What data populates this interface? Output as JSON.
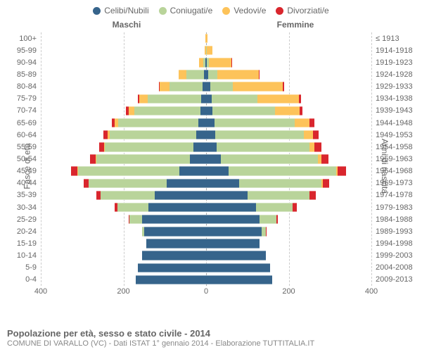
{
  "legend": [
    {
      "label": "Celibi/Nubili",
      "color": "#36648b"
    },
    {
      "label": "Coniugati/e",
      "color": "#b9d49a"
    },
    {
      "label": "Vedovi/e",
      "color": "#fdc35a"
    },
    {
      "label": "Divorziati/e",
      "color": "#d9262d"
    }
  ],
  "colors": {
    "single": "#36648b",
    "married": "#b9d49a",
    "widowed": "#fdc35a",
    "divorced": "#d9262d",
    "grid": "#cccccc",
    "text": "#666666"
  },
  "header_male": "Maschi",
  "header_female": "Femmine",
  "axis_left_title": "Fasce di età",
  "axis_right_title": "Anni di nascita",
  "title": "Popolazione per età, sesso e stato civile - 2014",
  "subtitle": "COMUNE DI VARALLO (VC) - Dati ISTAT 1° gennaio 2014 - Elaborazione TUTTITALIA.IT",
  "x_max": 400,
  "x_ticks": [
    400,
    200,
    0,
    200,
    400
  ],
  "rows": [
    {
      "age": "100+",
      "birth": "≤ 1913",
      "m": [
        0,
        0,
        1,
        0
      ],
      "f": [
        0,
        0,
        4,
        0
      ]
    },
    {
      "age": "95-99",
      "birth": "1914-1918",
      "m": [
        0,
        0,
        3,
        0
      ],
      "f": [
        0,
        1,
        14,
        0
      ]
    },
    {
      "age": "90-94",
      "birth": "1919-1923",
      "m": [
        2,
        5,
        10,
        0
      ],
      "f": [
        1,
        5,
        55,
        1
      ]
    },
    {
      "age": "85-89",
      "birth": "1924-1928",
      "m": [
        5,
        42,
        20,
        0
      ],
      "f": [
        5,
        22,
        100,
        2
      ]
    },
    {
      "age": "80-84",
      "birth": "1929-1933",
      "m": [
        8,
        80,
        24,
        2
      ],
      "f": [
        10,
        55,
        120,
        4
      ]
    },
    {
      "age": "75-79",
      "birth": "1934-1938",
      "m": [
        12,
        130,
        20,
        4
      ],
      "f": [
        14,
        110,
        100,
        6
      ]
    },
    {
      "age": "70-74",
      "birth": "1939-1943",
      "m": [
        14,
        160,
        14,
        6
      ],
      "f": [
        16,
        150,
        60,
        8
      ]
    },
    {
      "age": "65-69",
      "birth": "1944-1948",
      "m": [
        18,
        195,
        8,
        8
      ],
      "f": [
        20,
        195,
        35,
        12
      ]
    },
    {
      "age": "60-64",
      "birth": "1949-1953",
      "m": [
        24,
        210,
        4,
        10
      ],
      "f": [
        22,
        215,
        22,
        14
      ]
    },
    {
      "age": "55-59",
      "birth": "1954-1958",
      "m": [
        30,
        215,
        2,
        12
      ],
      "f": [
        26,
        225,
        12,
        16
      ]
    },
    {
      "age": "50-54",
      "birth": "1959-1963",
      "m": [
        40,
        225,
        2,
        14
      ],
      "f": [
        36,
        235,
        8,
        18
      ]
    },
    {
      "age": "45-49",
      "birth": "1964-1968",
      "m": [
        65,
        245,
        1,
        16
      ],
      "f": [
        55,
        260,
        4,
        20
      ]
    },
    {
      "age": "40-44",
      "birth": "1969-1973",
      "m": [
        95,
        190,
        0,
        12
      ],
      "f": [
        80,
        200,
        2,
        16
      ]
    },
    {
      "age": "35-39",
      "birth": "1974-1978",
      "m": [
        125,
        130,
        0,
        10
      ],
      "f": [
        100,
        150,
        1,
        14
      ]
    },
    {
      "age": "30-34",
      "birth": "1979-1983",
      "m": [
        140,
        75,
        0,
        6
      ],
      "f": [
        120,
        90,
        0,
        10
      ]
    },
    {
      "age": "25-29",
      "birth": "1984-1988",
      "m": [
        155,
        30,
        0,
        2
      ],
      "f": [
        130,
        40,
        0,
        4
      ]
    },
    {
      "age": "20-24",
      "birth": "1989-1993",
      "m": [
        150,
        5,
        0,
        0
      ],
      "f": [
        135,
        10,
        0,
        1
      ]
    },
    {
      "age": "15-19",
      "birth": "1994-1998",
      "m": [
        145,
        0,
        0,
        0
      ],
      "f": [
        130,
        0,
        0,
        0
      ]
    },
    {
      "age": "10-14",
      "birth": "1999-2003",
      "m": [
        155,
        0,
        0,
        0
      ],
      "f": [
        145,
        0,
        0,
        0
      ]
    },
    {
      "age": "5-9",
      "birth": "2004-2008",
      "m": [
        165,
        0,
        0,
        0
      ],
      "f": [
        155,
        0,
        0,
        0
      ]
    },
    {
      "age": "0-4",
      "birth": "2009-2013",
      "m": [
        170,
        0,
        0,
        0
      ],
      "f": [
        160,
        0,
        0,
        0
      ]
    }
  ]
}
